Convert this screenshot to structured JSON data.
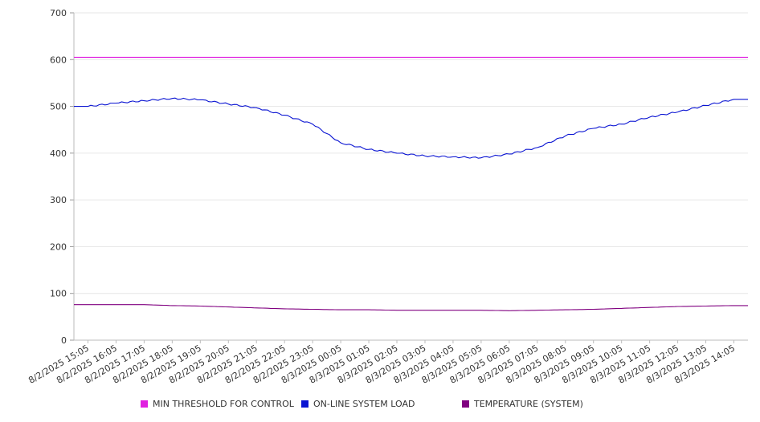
{
  "chart_data": {
    "type": "line",
    "x": [
      "8/2/2025 15:05",
      "8/2/2025 16:05",
      "8/2/2025 17:05",
      "8/2/2025 18:05",
      "8/2/2025 19:05",
      "8/2/2025 20:05",
      "8/2/2025 21:05",
      "8/2/2025 22:05",
      "8/2/2025 23:05",
      "8/3/2025 00:05",
      "8/3/2025 01:05",
      "8/3/2025 02:05",
      "8/3/2025 03:05",
      "8/3/2025 04:05",
      "8/3/2025 05:05",
      "8/3/2025 06:05",
      "8/3/2025 07:05",
      "8/3/2025 08:05",
      "8/3/2025 09:05",
      "8/3/2025 10:05",
      "8/3/2025 11:05",
      "8/3/2025 12:05",
      "8/3/2025 13:05",
      "8/3/2025 14:05"
    ],
    "ylim": [
      0,
      700
    ],
    "yticks": [
      "0",
      "100",
      "200",
      "300",
      "400",
      "500",
      "600",
      "700"
    ],
    "grid": true,
    "legend_position": "bottom",
    "series": [
      {
        "name": "MIN THRESHOLD FOR CONTROL",
        "color": "#e020e0",
        "values": [
          605,
          605,
          605,
          605,
          605,
          605,
          605,
          605,
          605,
          605,
          605,
          605,
          605,
          605,
          605,
          605,
          605,
          605,
          605,
          605,
          605,
          605,
          605,
          605
        ]
      },
      {
        "name": "ON-LINE SYSTEM LOAD",
        "color": "#0a14d2",
        "values": [
          500,
          507,
          512,
          517,
          514,
          505,
          497,
          481,
          462,
          422,
          408,
          400,
          394,
          392,
          390,
          398,
          412,
          437,
          453,
          462,
          477,
          488,
          502,
          515
        ]
      },
      {
        "name": "TEMPERATURE (SYSTEM)",
        "color": "#800080",
        "values": [
          76,
          76,
          76,
          74,
          73,
          71,
          69,
          67,
          66,
          65,
          65,
          64,
          64,
          64,
          64,
          63,
          64,
          65,
          66,
          68,
          70,
          72,
          73,
          74
        ]
      }
    ]
  }
}
